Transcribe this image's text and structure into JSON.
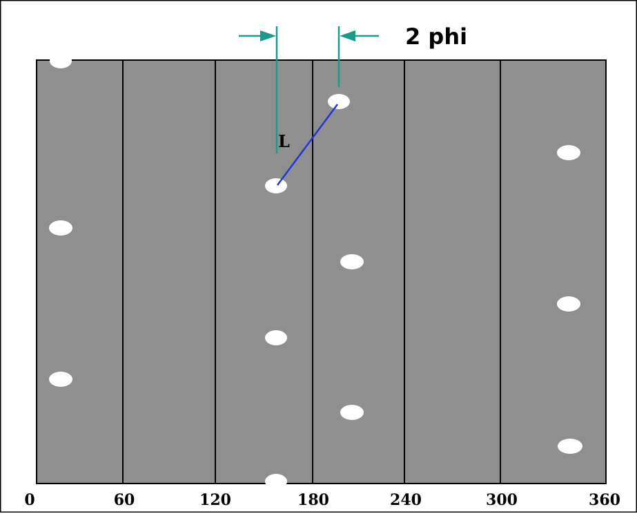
{
  "figure": {
    "annotation_label": "2 phi",
    "segment_label": "L",
    "x_ticks": [
      "0",
      "60",
      "120",
      "180",
      "240",
      "300",
      "360"
    ],
    "colors": {
      "background": "#ffffff",
      "panel": "#8f8f8f",
      "grid_lines": "#000000",
      "markers": "#ffffff",
      "dimension_lines": "#1a9a8c",
      "segment": "#2035d8"
    }
  }
}
